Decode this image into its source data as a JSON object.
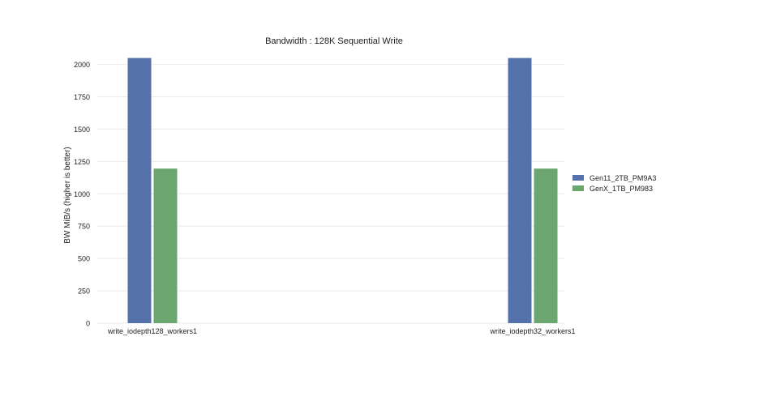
{
  "chart_data": {
    "type": "bar",
    "title": "Bandwidth : 128K Sequential Write",
    "ylabel": "BW MiB/s  (higher is better)",
    "xlabel": "",
    "categories": [
      "write_iodepth128_workers1",
      "write_iodepth32_workers1"
    ],
    "series": [
      {
        "name": "Gen11_2TB_PM9A3",
        "color": "#5471ab",
        "values": [
          2050,
          2050
        ]
      },
      {
        "name": "GenX_1TB_PM983",
        "color": "#6aa66e",
        "values": [
          1195,
          1195
        ]
      }
    ],
    "ylim": [
      0,
      2060
    ],
    "yticks": [
      0,
      250,
      500,
      750,
      1000,
      1250,
      1500,
      1750,
      2000
    ],
    "grid": true,
    "legend_position": "right"
  }
}
